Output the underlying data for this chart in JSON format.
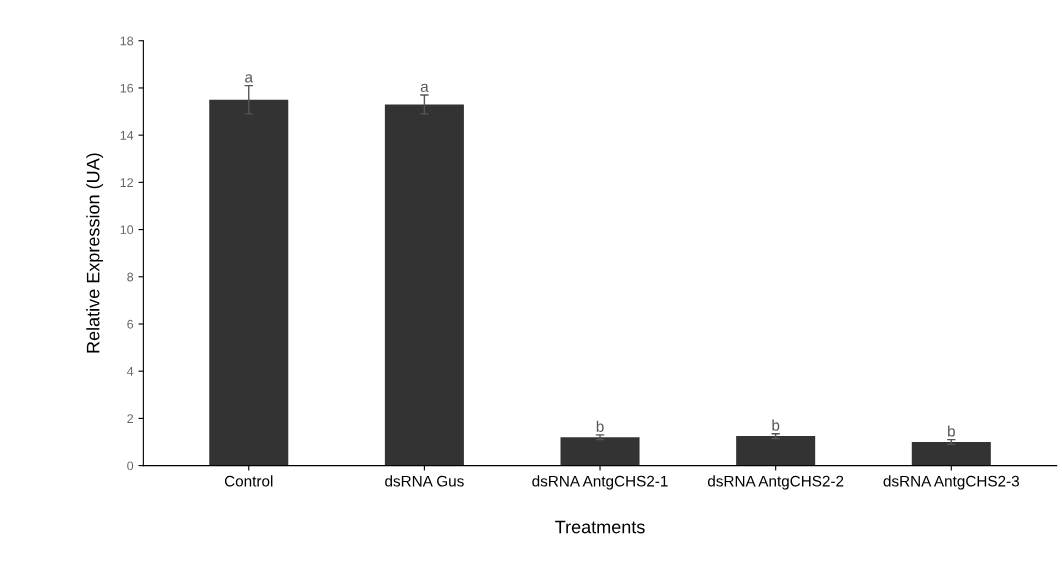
{
  "chart_data": {
    "type": "bar",
    "xlabel": "Treatments",
    "ylabel": "Relative Expression (UA)",
    "categories": [
      "Control",
      "dsRNA Gus",
      "dsRNA AntgCHS2-1",
      "dsRNA AntgCHS2-2",
      "dsRNA AntgCHS2-3"
    ],
    "values": [
      15.5,
      15.3,
      1.2,
      1.25,
      1.0
    ],
    "errors": [
      0.6,
      0.4,
      0.1,
      0.1,
      0.1
    ],
    "color": "#333333",
    "ylim": [
      0,
      18
    ],
    "yticks": [
      0,
      2,
      4,
      6,
      8,
      10,
      12,
      14,
      16,
      18
    ],
    "grid": false,
    "legend": false,
    "annotations": [
      {
        "text": "a",
        "x": "Control",
        "y": 16.1
      },
      {
        "text": "a",
        "x": "dsRNA Gus",
        "y": 15.7
      },
      {
        "text": "b",
        "x": "dsRNA AntgCHS2-1",
        "y": 1.3
      },
      {
        "text": "b",
        "x": "dsRNA AntgCHS2-2",
        "y": 1.35
      },
      {
        "text": "b",
        "x": "dsRNA AntgCHS2-3",
        "y": 1.1
      }
    ]
  }
}
